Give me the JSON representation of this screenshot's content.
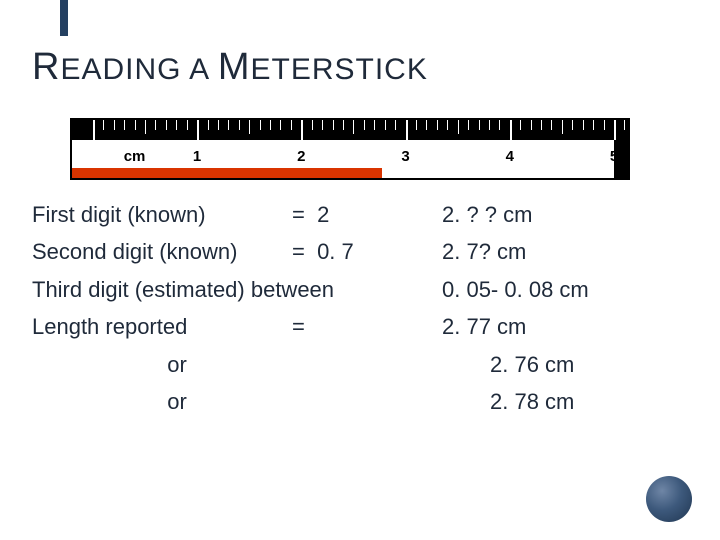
{
  "title_parts": {
    "r": "R",
    "eading_a": "EADING A ",
    "m": "M",
    "eterstick": "ETERSTICK"
  },
  "ruler": {
    "cm_label": "cm",
    "major_labels": [
      "1",
      "2",
      "3",
      "4",
      "5"
    ],
    "red_bar_end_cm": 2.77,
    "total_cm": 5.2,
    "colors": {
      "tick_bg": "#000000",
      "tick_fg": "#ffffff",
      "red": "#d93400",
      "border": "#000000"
    }
  },
  "rows": [
    {
      "label": "First digit (known)",
      "mid": "=  2",
      "right": "2. ? ? cm"
    },
    {
      "label": "Second digit (known)",
      "mid": "=  0. 7",
      "right": "2. 7? cm"
    },
    {
      "label": "Third digit (estimated) between",
      "mid": "",
      "right": "0. 05- 0. 08 cm",
      "span2": true
    },
    {
      "label": "Length reported",
      "mid": "=",
      "right": "2. 77 cm"
    }
  ],
  "sub_rows": [
    {
      "or": "or",
      "right": "2. 76 cm"
    },
    {
      "or": "or",
      "right": "2. 78 cm"
    }
  ],
  "colors": {
    "title": "#1f2a3a",
    "accent": "#244061",
    "text": "#1f2a3a",
    "circle_dark": "#1f3550"
  },
  "fonts": {
    "title_size_pt": 30,
    "body_size_pt": 22
  }
}
